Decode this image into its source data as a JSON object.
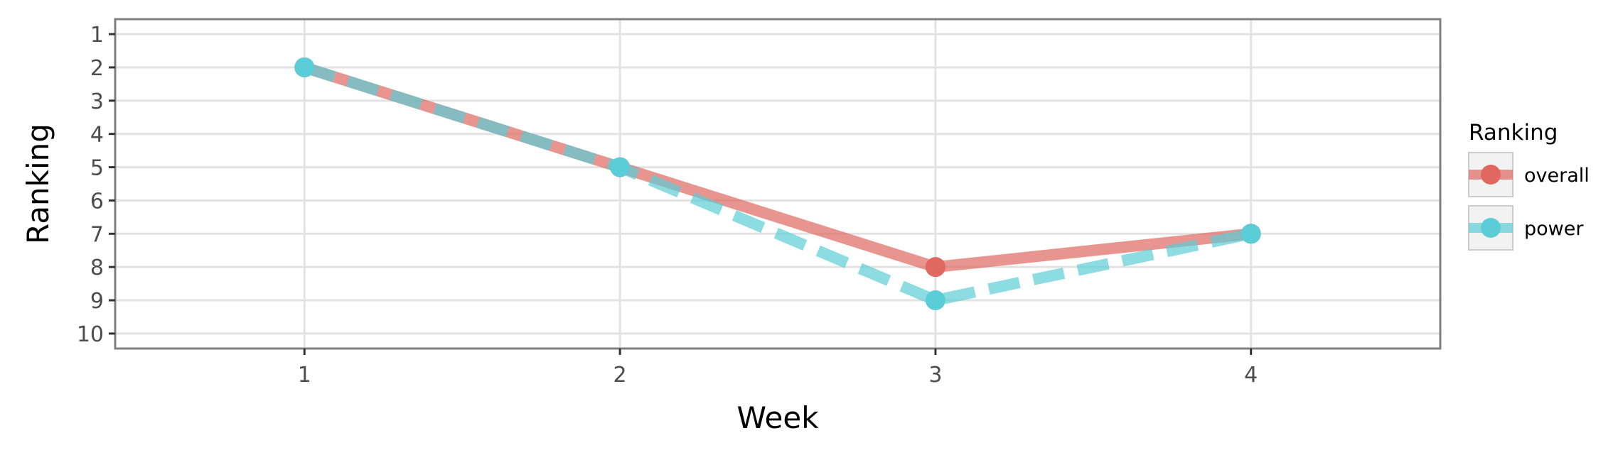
{
  "chart_data": {
    "type": "line",
    "title": "",
    "xlabel": "Week",
    "ylabel": "Ranking",
    "x": [
      1,
      2,
      3,
      4
    ],
    "x_tick_labels": [
      "1",
      "2",
      "3",
      "4"
    ],
    "xlim": [
      0.4,
      4.6
    ],
    "y_tick_labels": [
      "1",
      "2",
      "3",
      "4",
      "5",
      "6",
      "7",
      "8",
      "9",
      "10"
    ],
    "ylim": [
      1,
      10
    ],
    "y_reversed": true,
    "grid": true,
    "legend": {
      "title": "Ranking",
      "placement": "right"
    },
    "series": [
      {
        "name": "overall",
        "values": [
          2,
          5,
          8,
          7
        ],
        "color": "#E06860",
        "linestyle": "solid"
      },
      {
        "name": "power",
        "values": [
          2,
          5,
          9,
          7
        ],
        "color": "#5BCDD6",
        "linestyle": "dashed"
      }
    ]
  }
}
